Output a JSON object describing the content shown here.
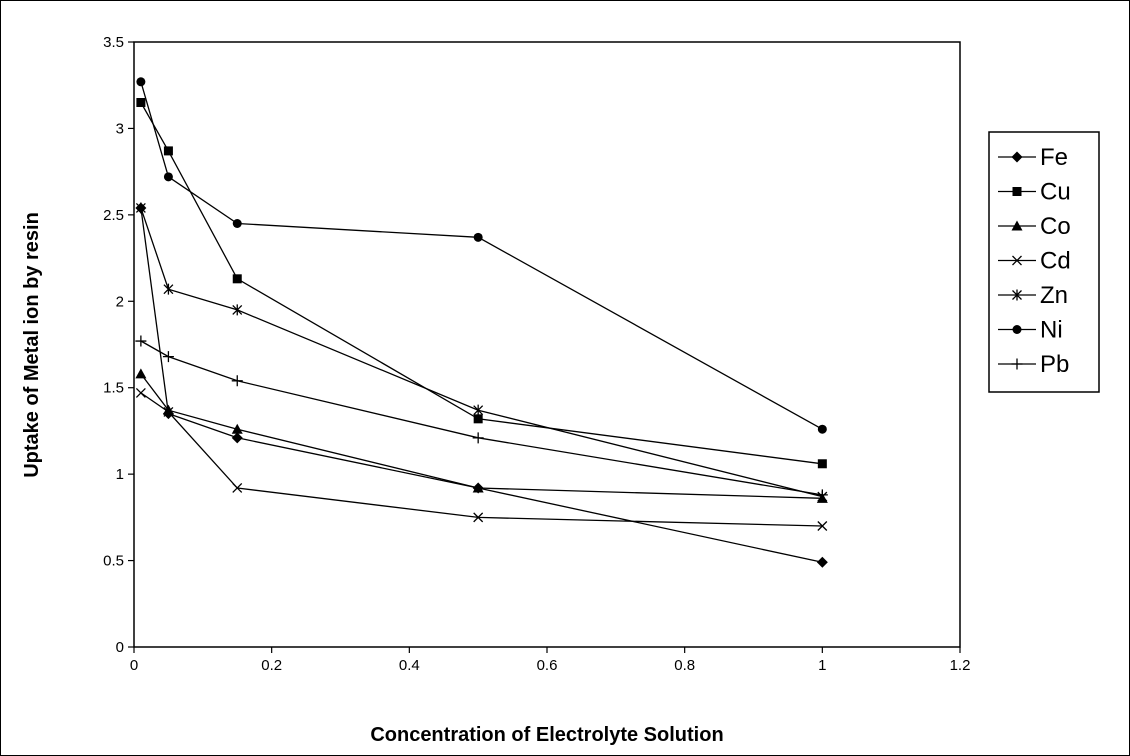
{
  "chart_data": {
    "type": "line",
    "title": "",
    "xlabel": "Concentration of Electrolyte Solution",
    "ylabel": "Uptake of Metal ion by resin",
    "xlim": [
      0,
      1.2
    ],
    "ylim": [
      0,
      3.5
    ],
    "x_ticks": [
      "0",
      "0.2",
      "0.4",
      "0.6",
      "0.8",
      "1",
      "1.2"
    ],
    "y_ticks": [
      "0",
      "0.5",
      "1",
      "1.5",
      "2",
      "2.5",
      "3",
      "3.5"
    ],
    "x_tick_values": [
      0,
      0.2,
      0.4,
      0.6,
      0.8,
      1,
      1.2
    ],
    "y_tick_values": [
      0,
      0.5,
      1,
      1.5,
      2,
      2.5,
      3,
      3.5
    ],
    "grid": false,
    "legend_position": "right",
    "x": [
      0.01,
      0.05,
      0.15,
      0.5,
      1
    ],
    "series": [
      {
        "name": "Fe",
        "marker": "diamond",
        "color": "#000000",
        "values": [
          2.54,
          1.35,
          1.21,
          0.92,
          0.49
        ]
      },
      {
        "name": "Cu",
        "marker": "square",
        "color": "#000000",
        "values": [
          3.15,
          2.87,
          2.13,
          1.32,
          1.06
        ]
      },
      {
        "name": "Co",
        "marker": "triangle",
        "color": "#000000",
        "values": [
          1.58,
          1.37,
          1.26,
          0.92,
          0.86
        ]
      },
      {
        "name": "Cd",
        "marker": "x",
        "color": "#000000",
        "values": [
          1.47,
          1.36,
          0.92,
          0.75,
          0.7
        ]
      },
      {
        "name": "Zn",
        "marker": "star",
        "color": "#000000",
        "values": [
          2.54,
          2.07,
          1.95,
          1.37,
          0.87
        ]
      },
      {
        "name": "Ni",
        "marker": "circle",
        "color": "#000000",
        "values": [
          3.27,
          2.72,
          2.45,
          2.37,
          1.26
        ]
      },
      {
        "name": "Pb",
        "marker": "plus",
        "color": "#000000",
        "values": [
          1.77,
          1.68,
          1.54,
          1.21,
          0.88
        ]
      }
    ]
  }
}
